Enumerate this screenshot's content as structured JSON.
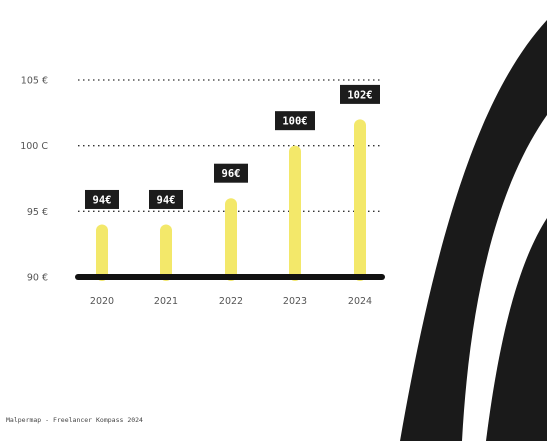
{
  "chart_data": {
    "type": "bar",
    "categories": [
      "2020",
      "2021",
      "2022",
      "2023",
      "2024"
    ],
    "values": [
      94,
      94,
      96,
      100,
      102
    ],
    "data_labels": [
      "94€",
      "94€",
      "96€",
      "100€",
      "102€"
    ],
    "y_ticks": [
      {
        "value": 90,
        "label": "90 €"
      },
      {
        "value": 95,
        "label": "95 €"
      },
      {
        "value": 100,
        "label": "100 C"
      },
      {
        "value": 105,
        "label": "105 €"
      }
    ],
    "ylim": [
      90,
      105
    ],
    "grid": true,
    "title": "",
    "xlabel": "",
    "ylabel": ""
  },
  "footer": {
    "source": "Malpermap - Freelancer Kompass 2024"
  },
  "colors": {
    "bar": "#f3e86a",
    "label_bg": "#1c1c1c",
    "baseline": "#111111",
    "grid": "#333333",
    "decoration": "#1a1a1a"
  }
}
